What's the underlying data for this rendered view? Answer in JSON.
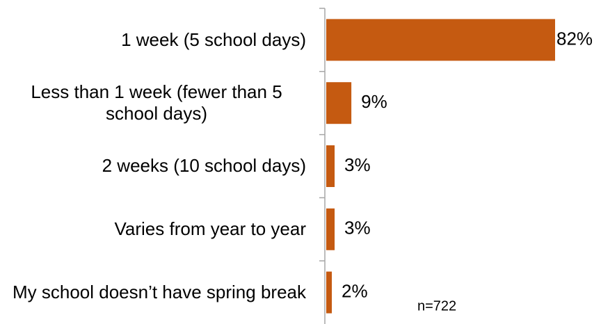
{
  "chart_data": {
    "type": "bar",
    "orientation": "horizontal",
    "categories": [
      "1 week (5 school days)",
      "Less than 1 week (fewer than 5 school days)",
      "2 weeks (10 school days)",
      "Varies from year to year",
      "My school doesn’t have spring break"
    ],
    "values": [
      82,
      9,
      3,
      3,
      2
    ],
    "value_labels": [
      "82%",
      "9%",
      "3%",
      "3%",
      "2%"
    ],
    "color": "#c55a11",
    "xlim": [
      0,
      82
    ],
    "annotation": "n=722"
  }
}
